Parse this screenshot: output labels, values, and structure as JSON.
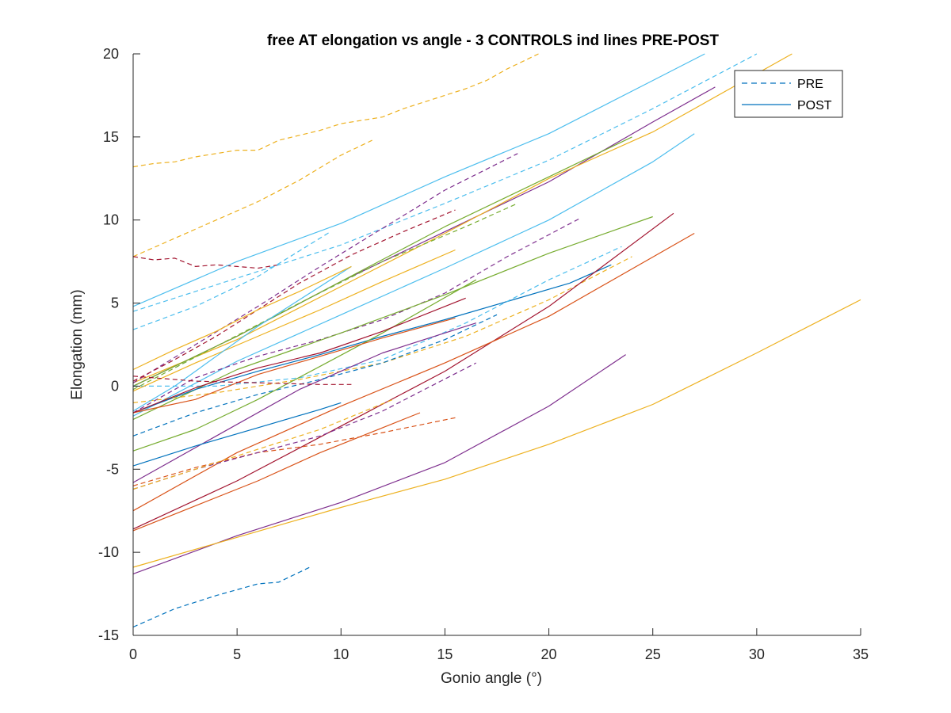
{
  "chart_data": {
    "type": "line",
    "title": "free AT elongation vs angle - 3 CONTROLS ind lines PRE-POST",
    "xlabel": "Gonio angle (°)",
    "ylabel": "Elongation (mm)",
    "xlim": [
      0,
      35
    ],
    "ylim": [
      -15,
      20
    ],
    "xticks": [
      0,
      5,
      10,
      15,
      20,
      25,
      30,
      35
    ],
    "yticks": [
      -15,
      -10,
      -5,
      0,
      5,
      10,
      15,
      20
    ],
    "grid": false,
    "legend_position": "top-right",
    "legend": [
      {
        "label": "PRE",
        "style": "dashed",
        "color": "#0072BD"
      },
      {
        "label": "POST",
        "style": "solid",
        "color": "#0072BD"
      }
    ],
    "series": [
      {
        "style": "dashed",
        "color": "#EDB120",
        "x": [
          0,
          1,
          2,
          3,
          4,
          5,
          6,
          7,
          8,
          9,
          10,
          11,
          12,
          13,
          14,
          15,
          16,
          17,
          18,
          19.5
        ],
        "y": [
          13.2,
          13.4,
          13.5,
          13.8,
          14.0,
          14.2,
          14.2,
          14.8,
          15.1,
          15.4,
          15.8,
          16.0,
          16.2,
          16.7,
          17.1,
          17.5,
          17.9,
          18.4,
          19.1,
          20.0
        ]
      },
      {
        "style": "dashed",
        "color": "#EDB120",
        "x": [
          0,
          2,
          4,
          6,
          8,
          10,
          11.5
        ],
        "y": [
          7.8,
          8.9,
          10.0,
          11.1,
          12.4,
          13.9,
          14.8
        ]
      },
      {
        "style": "dashed",
        "color": "#A2142F",
        "x": [
          0,
          1,
          2,
          3,
          4,
          5,
          6,
          7
        ],
        "y": [
          7.8,
          7.6,
          7.7,
          7.2,
          7.3,
          7.2,
          7.1,
          7.3
        ]
      },
      {
        "style": "solid",
        "color": "#4DBEEE",
        "x": [
          0,
          5,
          10,
          15,
          20,
          25,
          27.5
        ],
        "y": [
          4.8,
          7.5,
          9.8,
          12.6,
          15.2,
          18.4,
          20.0
        ]
      },
      {
        "style": "dashed",
        "color": "#4DBEEE",
        "x": [
          0,
          5,
          10,
          15,
          20,
          25,
          30
        ],
        "y": [
          4.5,
          6.5,
          8.5,
          11.0,
          13.6,
          16.7,
          20.0
        ]
      },
      {
        "style": "dashed",
        "color": "#4DBEEE",
        "x": [
          0,
          3,
          6,
          9.5
        ],
        "y": [
          3.4,
          4.8,
          6.6,
          9.3
        ]
      },
      {
        "style": "solid",
        "color": "#7E2F8E",
        "x": [
          0,
          5,
          10,
          15,
          20,
          25,
          28
        ],
        "y": [
          0.0,
          3.0,
          6.3,
          9.3,
          12.3,
          15.9,
          18.0
        ]
      },
      {
        "style": "solid",
        "color": "#EDB120",
        "x": [
          0,
          5,
          10,
          15,
          20,
          25,
          31.7
        ],
        "y": [
          0.2,
          2.8,
          6.0,
          9.2,
          12.5,
          15.3,
          20.0
        ]
      },
      {
        "style": "solid",
        "color": "#77AC30",
        "x": [
          0,
          5,
          10,
          15,
          20,
          24
        ],
        "y": [
          0.0,
          3.0,
          6.3,
          9.6,
          12.6,
          15.0
        ]
      },
      {
        "style": "dashed",
        "color": "#7E2F8E",
        "x": [
          0,
          3,
          6,
          9,
          12,
          15,
          18.5
        ],
        "y": [
          0.2,
          2.5,
          4.8,
          7.2,
          9.5,
          11.8,
          14.0
        ]
      },
      {
        "style": "dashed",
        "color": "#77AC30",
        "x": [
          0,
          4,
          8,
          12,
          16,
          18.5
        ],
        "y": [
          -0.2,
          2.4,
          5.0,
          7.5,
          9.6,
          11.0
        ]
      },
      {
        "style": "solid",
        "color": "#4DBEEE",
        "x": [
          0,
          5,
          10,
          15,
          20,
          25,
          27
        ],
        "y": [
          -1.8,
          1.5,
          4.3,
          7.1,
          10.0,
          13.5,
          15.2
        ]
      },
      {
        "style": "dashed",
        "color": "#7E2F8E",
        "x": [
          0,
          3,
          6,
          9,
          12,
          15,
          18,
          21.5
        ],
        "y": [
          -1.6,
          0.5,
          1.8,
          2.8,
          4.0,
          5.6,
          7.8,
          10.1
        ]
      },
      {
        "style": "solid",
        "color": "#77AC30",
        "x": [
          0,
          5,
          10,
          15,
          20,
          25
        ],
        "y": [
          -2.0,
          1.0,
          3.2,
          5.5,
          8.0,
          10.2
        ]
      },
      {
        "style": "solid",
        "color": "#0072BD",
        "x": [
          0,
          3,
          6,
          9,
          12,
          15,
          18,
          21,
          23
        ],
        "y": [
          -1.6,
          -0.2,
          0.9,
          1.9,
          3.0,
          4.0,
          5.1,
          6.2,
          7.3
        ]
      },
      {
        "style": "dashed",
        "color": "#4DBEEE",
        "x": [
          0,
          4,
          8,
          12,
          16,
          20,
          23.5
        ],
        "y": [
          0.0,
          0.0,
          0.5,
          1.6,
          3.8,
          6.4,
          8.4
        ]
      },
      {
        "style": "dashed",
        "color": "#EDB120",
        "x": [
          0,
          4,
          8,
          12,
          16,
          20,
          24
        ],
        "y": [
          -1.0,
          -0.4,
          0.4,
          1.4,
          3.0,
          5.2,
          7.8
        ]
      },
      {
        "style": "solid",
        "color": "#A2142F",
        "x": [
          0,
          5,
          10,
          15,
          20,
          26
        ],
        "y": [
          -8.6,
          -5.7,
          -2.4,
          0.9,
          4.8,
          10.4
        ]
      },
      {
        "style": "solid",
        "color": "#D95319",
        "x": [
          0,
          5,
          10,
          15,
          20,
          27
        ],
        "y": [
          -7.5,
          -4.0,
          -1.2,
          1.4,
          4.2,
          9.2
        ]
      },
      {
        "style": "solid",
        "color": "#7E2F8E",
        "x": [
          0,
          4,
          8,
          12,
          16.5
        ],
        "y": [
          -5.8,
          -3.0,
          -0.2,
          2.0,
          3.8
        ]
      },
      {
        "style": "solid",
        "color": "#7E2F8E",
        "x": [
          0,
          5,
          10,
          15,
          20,
          23.7
        ],
        "y": [
          -11.3,
          -9.0,
          -7.0,
          -4.6,
          -1.2,
          1.9
        ]
      },
      {
        "style": "solid",
        "color": "#EDB120",
        "x": [
          0,
          5,
          10,
          15,
          20,
          25,
          30,
          35
        ],
        "y": [
          -10.9,
          -9.1,
          -7.3,
          -5.6,
          -3.5,
          -1.1,
          2.0,
          5.2
        ]
      },
      {
        "style": "dashed",
        "color": "#0072BD",
        "x": [
          0,
          2,
          4,
          6,
          7,
          8.5
        ],
        "y": [
          -14.5,
          -13.4,
          -12.6,
          -11.9,
          -11.8,
          -10.9
        ]
      },
      {
        "style": "solid",
        "color": "#0072BD",
        "x": [
          0,
          3,
          6,
          9,
          10
        ],
        "y": [
          -4.8,
          -3.6,
          -2.5,
          -1.4,
          -1.0
        ]
      },
      {
        "style": "dashed",
        "color": "#D95319",
        "x": [
          0,
          3,
          6,
          9,
          12,
          15.5
        ],
        "y": [
          -6.0,
          -4.9,
          -4.0,
          -3.5,
          -2.8,
          -1.9
        ]
      },
      {
        "style": "dashed",
        "color": "#7E2F8E",
        "x": [
          0,
          3,
          6,
          9,
          12,
          16.5
        ],
        "y": [
          -6.2,
          -5.0,
          -4.0,
          -3.0,
          -1.5,
          1.4
        ]
      },
      {
        "style": "solid",
        "color": "#D95319",
        "x": [
          0,
          3,
          6,
          9,
          12,
          13.8
        ],
        "y": [
          -8.7,
          -7.2,
          -5.7,
          -4.0,
          -2.5,
          -1.6
        ]
      },
      {
        "style": "dashed",
        "color": "#0072BD",
        "x": [
          0,
          3,
          6,
          9,
          12,
          15,
          17.5
        ],
        "y": [
          -3.0,
          -1.6,
          -0.5,
          0.4,
          1.4,
          2.8,
          4.3
        ]
      },
      {
        "style": "solid",
        "color": "#77AC30",
        "x": [
          0,
          3,
          6,
          9,
          12,
          16.5
        ],
        "y": [
          -3.9,
          -2.6,
          -0.8,
          1.2,
          3.2,
          6.4
        ]
      },
      {
        "style": "solid",
        "color": "#EDB120",
        "x": [
          0,
          3,
          6,
          9,
          12,
          15.5
        ],
        "y": [
          -0.3,
          1.4,
          3.0,
          4.6,
          6.3,
          8.2
        ]
      },
      {
        "style": "solid",
        "color": "#4DBEEE",
        "x": [
          0,
          2,
          4,
          6,
          8,
          10.5
        ],
        "y": [
          -1.5,
          0.0,
          1.8,
          3.6,
          5.2,
          7.2
        ]
      },
      {
        "style": "dashed",
        "color": "#A2142F",
        "x": [
          0,
          2,
          4,
          6,
          8,
          10.5,
          13,
          15.5
        ],
        "y": [
          0.3,
          1.6,
          3.0,
          4.6,
          6.2,
          7.9,
          9.3,
          10.6
        ]
      },
      {
        "style": "solid",
        "color": "#EDB120",
        "x": [
          0,
          2,
          4,
          6,
          8,
          10.5
        ],
        "y": [
          1.0,
          2.2,
          3.3,
          4.6,
          5.7,
          7.2
        ]
      },
      {
        "style": "solid",
        "color": "#D95319",
        "x": [
          0,
          3,
          6,
          9,
          12,
          15.5
        ],
        "y": [
          -1.6,
          -0.8,
          0.7,
          1.8,
          2.9,
          4.1
        ]
      },
      {
        "style": "solid",
        "color": "#A2142F",
        "x": [
          0,
          3,
          6,
          9,
          12,
          16
        ],
        "y": [
          -1.6,
          -0.1,
          1.1,
          2.0,
          3.3,
          5.3
        ]
      },
      {
        "style": "dashed",
        "color": "#EDB120",
        "x": [
          0,
          3,
          6,
          9,
          12.5
        ],
        "y": [
          -6.2,
          -5.0,
          -3.8,
          -2.6,
          -0.8
        ]
      },
      {
        "style": "dashed",
        "color": "#A2142F",
        "x": [
          0,
          3,
          6,
          9,
          10.5
        ],
        "y": [
          0.6,
          0.3,
          0.2,
          0.1,
          0.1
        ]
      }
    ]
  }
}
